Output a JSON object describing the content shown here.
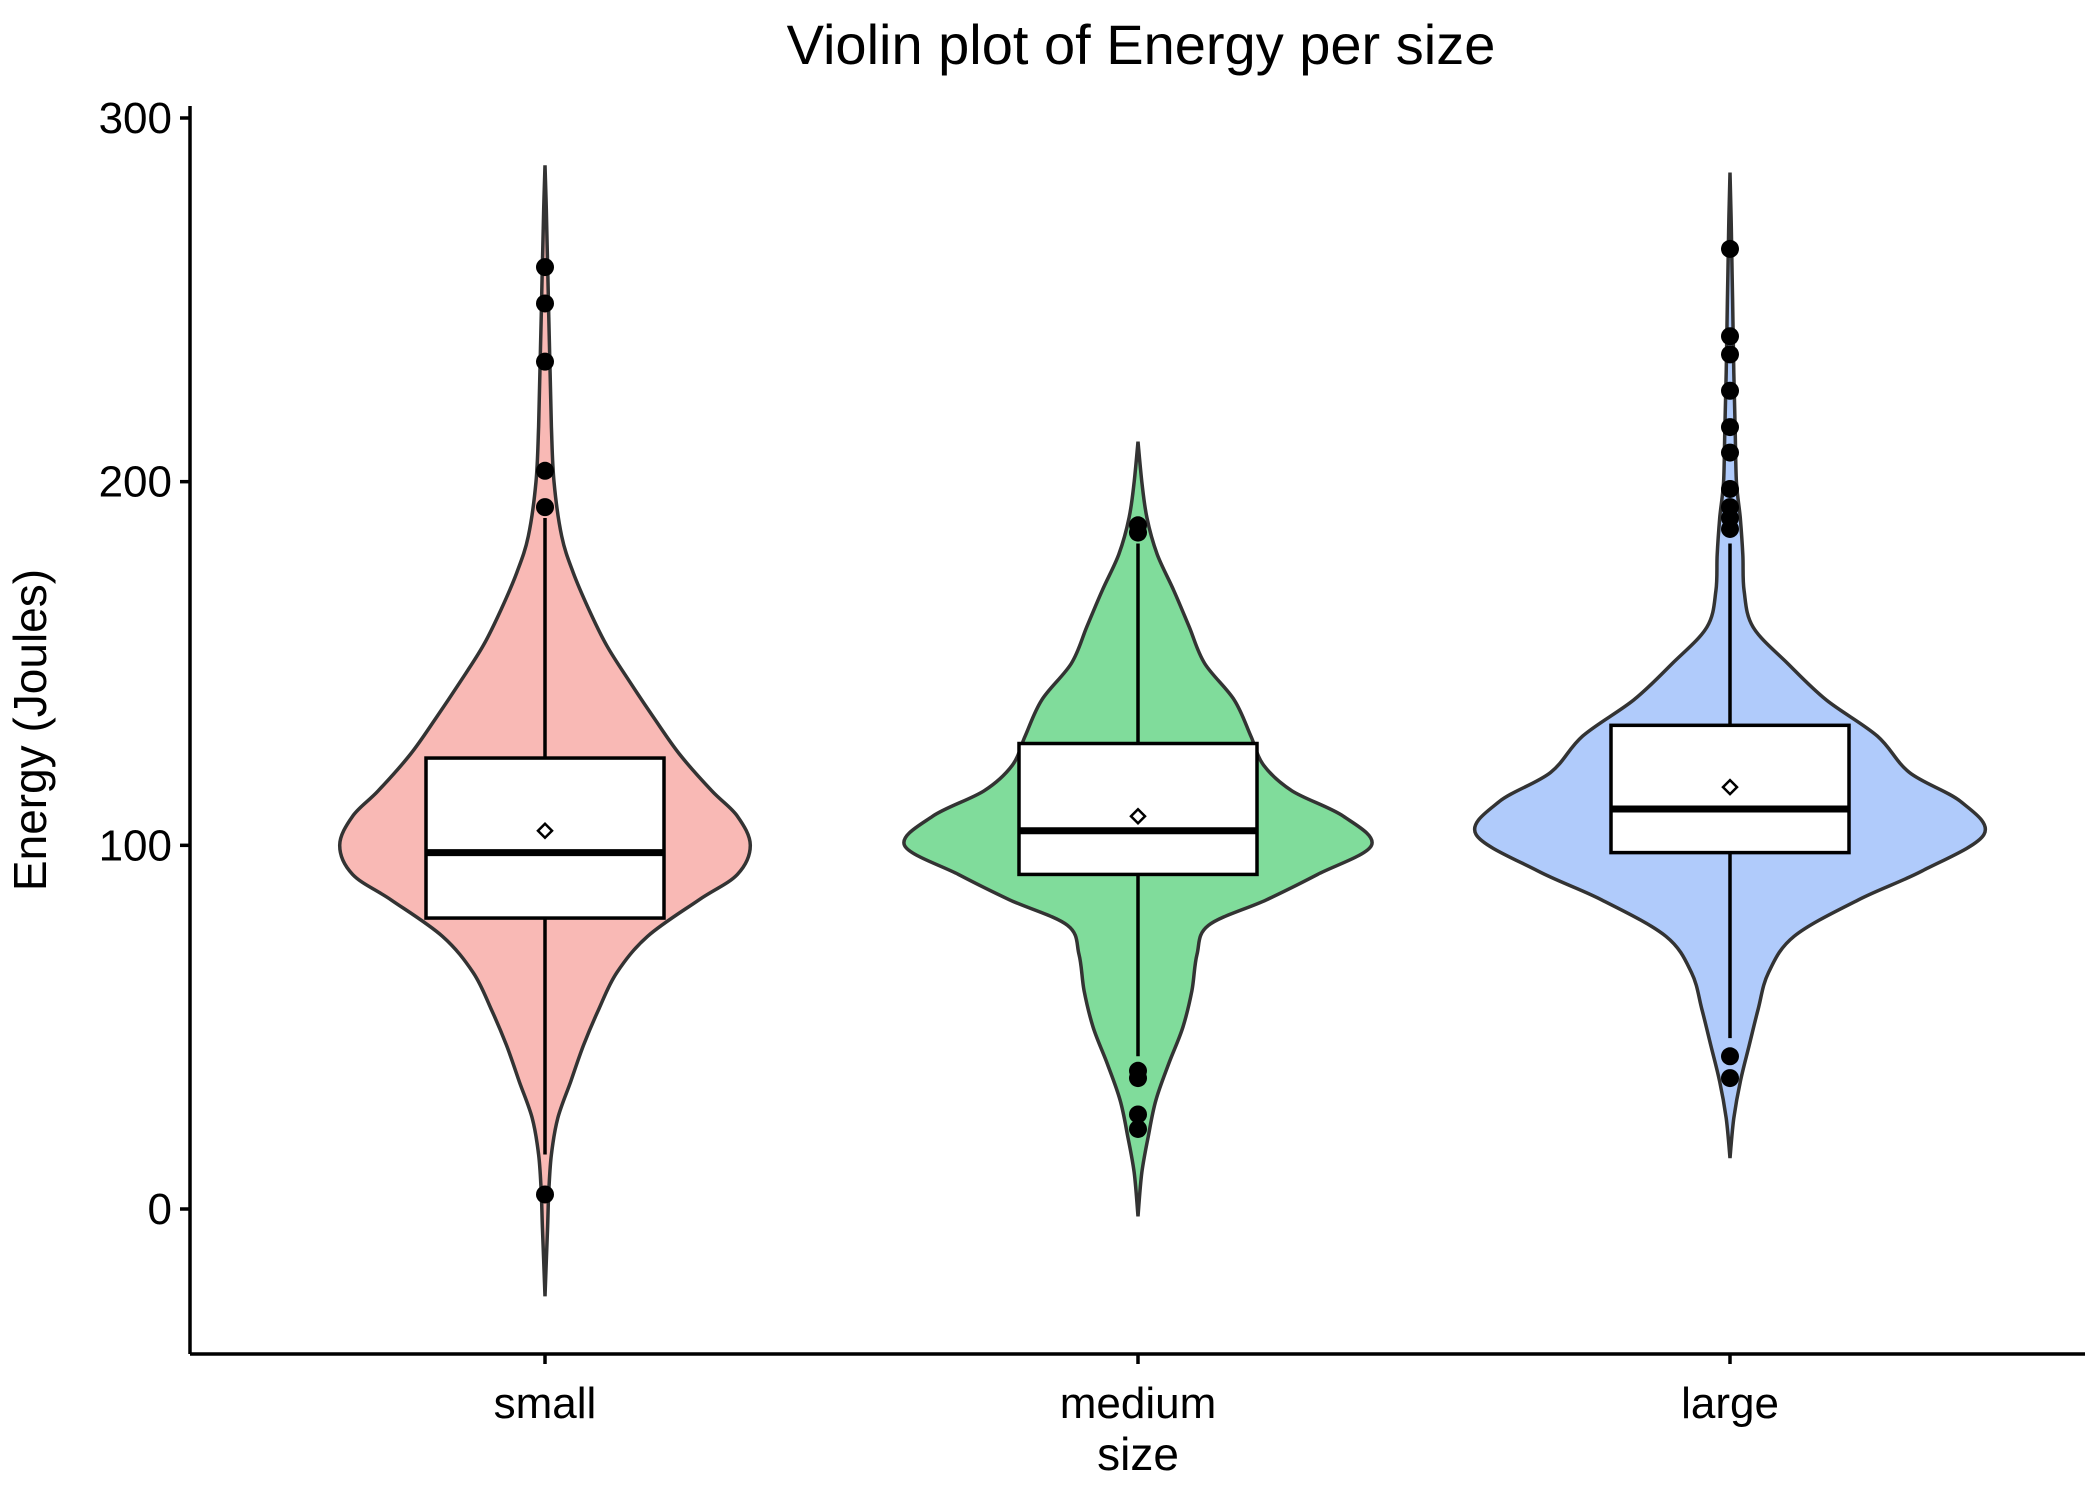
{
  "chart_data": {
    "type": "violin",
    "title": "Violin plot of Energy per size",
    "xlabel": "size",
    "ylabel": "Energy (Joules)",
    "ylim": [
      -40,
      305
    ],
    "yticks": [
      0,
      100,
      200,
      300
    ],
    "categories": [
      "small",
      "medium",
      "large"
    ],
    "grid": false,
    "legend": "none",
    "groups": [
      {
        "name": "small",
        "color": "#F8766D",
        "fill": "#F9B9B5",
        "density": [
          [
            -24,
            0
          ],
          [
            -5,
            2
          ],
          [
            5,
            3
          ],
          [
            15,
            5
          ],
          [
            25,
            10
          ],
          [
            35,
            20
          ],
          [
            45,
            30
          ],
          [
            55,
            42
          ],
          [
            65,
            56
          ],
          [
            75,
            80
          ],
          [
            85,
            120
          ],
          [
            92,
            150
          ],
          [
            100,
            160
          ],
          [
            108,
            150
          ],
          [
            115,
            130
          ],
          [
            125,
            105
          ],
          [
            135,
            85
          ],
          [
            145,
            66
          ],
          [
            155,
            48
          ],
          [
            165,
            34
          ],
          [
            175,
            22
          ],
          [
            185,
            13
          ],
          [
            200,
            7
          ],
          [
            215,
            5
          ],
          [
            230,
            4
          ],
          [
            245,
            3
          ],
          [
            260,
            2
          ],
          [
            275,
            1
          ],
          [
            287,
            0
          ]
        ],
        "box": {
          "q1": 80,
          "median": 98,
          "q3": 124,
          "whisker_low": 15,
          "whisker_high": 190,
          "mean": 104
        },
        "outliers": [
          4,
          193,
          203,
          233,
          249,
          259
        ]
      },
      {
        "name": "medium",
        "color": "#00BA38",
        "fill": "#80DC9B",
        "density": [
          [
            -2,
            0
          ],
          [
            10,
            3
          ],
          [
            20,
            8
          ],
          [
            30,
            14
          ],
          [
            40,
            24
          ],
          [
            50,
            35
          ],
          [
            60,
            42
          ],
          [
            70,
            46
          ],
          [
            78,
            55
          ],
          [
            85,
            100
          ],
          [
            92,
            140
          ],
          [
            100,
            182
          ],
          [
            108,
            160
          ],
          [
            115,
            120
          ],
          [
            122,
            98
          ],
          [
            130,
            88
          ],
          [
            140,
            75
          ],
          [
            150,
            52
          ],
          [
            160,
            40
          ],
          [
            170,
            28
          ],
          [
            180,
            15
          ],
          [
            190,
            7
          ],
          [
            200,
            3
          ],
          [
            211,
            0
          ]
        ],
        "box": {
          "q1": 92,
          "median": 104,
          "q3": 128,
          "whisker_low": 42,
          "whisker_high": 183,
          "mean": 108
        },
        "outliers": [
          22,
          26,
          36,
          38,
          186,
          188
        ]
      },
      {
        "name": "large",
        "color": "#619CFF",
        "fill": "#B0CBFB",
        "density": [
          [
            14,
            0
          ],
          [
            25,
            3
          ],
          [
            35,
            8
          ],
          [
            45,
            15
          ],
          [
            55,
            22
          ],
          [
            65,
            30
          ],
          [
            75,
            50
          ],
          [
            85,
            100
          ],
          [
            93,
            150
          ],
          [
            103,
            198
          ],
          [
            112,
            180
          ],
          [
            120,
            140
          ],
          [
            130,
            115
          ],
          [
            140,
            75
          ],
          [
            150,
            45
          ],
          [
            160,
            18
          ],
          [
            170,
            11
          ],
          [
            180,
            10
          ],
          [
            190,
            8
          ],
          [
            200,
            5
          ],
          [
            215,
            4
          ],
          [
            230,
            3
          ],
          [
            250,
            2
          ],
          [
            270,
            1
          ],
          [
            285,
            0
          ]
        ],
        "box": {
          "q1": 98,
          "median": 110,
          "q3": 133,
          "whisker_low": 47,
          "whisker_high": 183,
          "mean": 116
        },
        "outliers": [
          36,
          42,
          187,
          190,
          193,
          198,
          208,
          215,
          225,
          235,
          240,
          264
        ]
      }
    ]
  }
}
